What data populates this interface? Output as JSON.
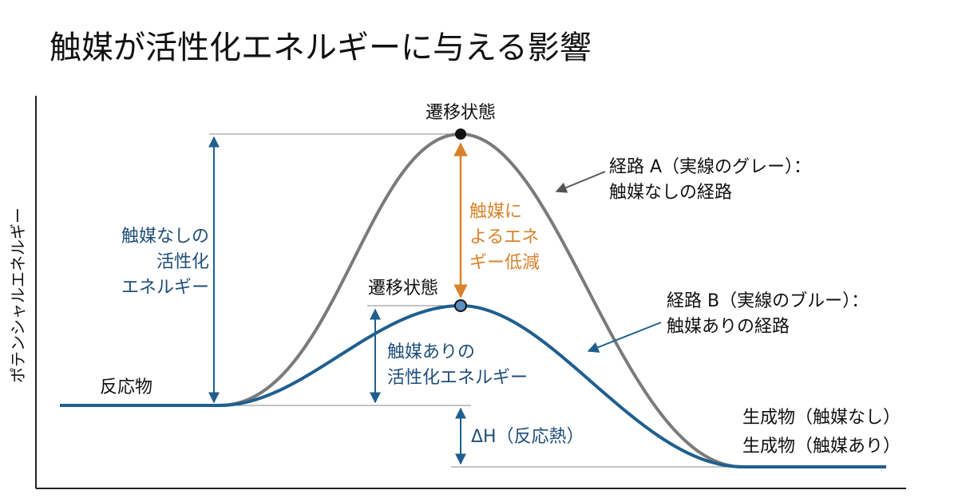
{
  "title": "触媒が活性化エネルギーに与える影響",
  "y_axis_label": "ポテンシャルエネルギー",
  "transition_state_a": "遷移状態",
  "transition_state_b": "遷移状態",
  "path_a_label": [
    "経路 A（実線のグレー）：",
    "触媒なしの経路"
  ],
  "path_b_label": [
    "経路 B（実線のブルー）：",
    "触媒ありの経路"
  ],
  "activation_energy_uncatalyzed": [
    "触媒なしの",
    "活性化",
    "エネルギー"
  ],
  "energy_reduction": [
    "触媒に",
    "よるエネ",
    "ギー低減"
  ],
  "activation_energy_catalyzed": [
    "触媒ありの",
    "活性化エネルギー"
  ],
  "reactant": "反応物",
  "delta_h": "ΔH（反応熱）",
  "products": [
    "生成物（触媒なし）",
    "生成物（触媒あり）"
  ]
}
